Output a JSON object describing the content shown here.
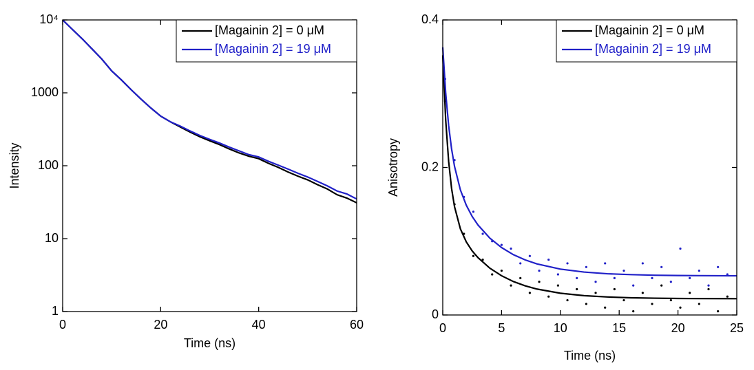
{
  "chart_data": [
    {
      "type": "line",
      "xlabel": "Time (ns)",
      "ylabel": "Intensity",
      "yscale": "log",
      "xlim": [
        0,
        60
      ],
      "ylim": [
        1,
        10000
      ],
      "xticks": [
        0,
        20,
        40,
        60
      ],
      "yticks": [
        1,
        10,
        100,
        1000,
        {
          "value": 10000,
          "label": "10⁴"
        }
      ],
      "legend": "upper right",
      "x": [
        0,
        2,
        4,
        6,
        8,
        10,
        12,
        14,
        16,
        18,
        20,
        22,
        24,
        26,
        28,
        30,
        32,
        34,
        36,
        38,
        40,
        42,
        44,
        46,
        48,
        50,
        52,
        54,
        56,
        58,
        60
      ],
      "series": [
        {
          "name": "[Magainin 2] = 0 μM",
          "color": "#000000",
          "values": [
            10000,
            7400,
            5500,
            4000,
            2900,
            2000,
            1500,
            1100,
            820,
            620,
            480,
            400,
            340,
            290,
            250,
            220,
            195,
            170,
            150,
            135,
            125,
            108,
            95,
            82,
            72,
            64,
            55,
            48,
            40,
            36,
            31
          ]
        },
        {
          "name": "[Magainin 2] = 19 μM",
          "color": "#2020c8",
          "values": [
            10000,
            7400,
            5500,
            4000,
            2900,
            2000,
            1500,
            1100,
            820,
            620,
            480,
            400,
            350,
            300,
            260,
            230,
            205,
            180,
            160,
            142,
            132,
            115,
            102,
            90,
            79,
            70,
            61,
            53,
            45,
            41,
            35
          ]
        }
      ]
    },
    {
      "type": "line",
      "xlabel": "Time (ns)",
      "ylabel": "Anisotropy",
      "xlim": [
        0,
        25
      ],
      "ylim": [
        0,
        0.4
      ],
      "xticks": [
        0,
        5,
        10,
        15,
        20,
        25
      ],
      "yticks": [
        0,
        0.2,
        0.4
      ],
      "legend": "upper right",
      "x": [
        0,
        0.25,
        0.5,
        0.75,
        1,
        1.5,
        2,
        2.5,
        3,
        4,
        5,
        6,
        7,
        8,
        10,
        12,
        14,
        16,
        18,
        20,
        22,
        25
      ],
      "series": [
        {
          "name": "[Magainin 2] = 0 μM",
          "color": "#000000",
          "values": [
            0.352,
            0.2643,
            0.2083,
            0.1715,
            0.1468,
            0.1167,
            0.0991,
            0.0869,
            0.0777,
            0.0635,
            0.0532,
            0.0454,
            0.0396,
            0.0352,
            0.0295,
            0.0262,
            0.0244,
            0.0233,
            0.0228,
            0.0224,
            0.0222,
            0.0221
          ]
        },
        {
          "name": "[Magainin 2] = 19 μM",
          "color": "#2020c8",
          "values": [
            0.363,
            0.3009,
            0.2569,
            0.2251,
            0.2015,
            0.1695,
            0.1488,
            0.1336,
            0.1219,
            0.1042,
            0.0914,
            0.0818,
            0.0747,
            0.0693,
            0.0622,
            0.0582,
            0.0559,
            0.0547,
            0.0539,
            0.0535,
            0.0533,
            0.0531
          ]
        }
      ],
      "points": [
        {
          "color": "#000000",
          "x": [
            0.2,
            1.0,
            1.8,
            2.6,
            3.4,
            4.2,
            5.0,
            5.8,
            6.6,
            7.4,
            8.2,
            9.0,
            9.8,
            10.6,
            11.4,
            12.2,
            13.0,
            13.8,
            14.6,
            15.4,
            16.2,
            17.0,
            17.8,
            18.6,
            19.4,
            20.2,
            21.0,
            21.8,
            22.6,
            23.4,
            24.2
          ],
          "values": [
            0.29,
            0.15,
            0.11,
            0.08,
            0.075,
            0.055,
            0.06,
            0.04,
            0.05,
            0.03,
            0.045,
            0.025,
            0.04,
            0.02,
            0.035,
            0.015,
            0.03,
            0.01,
            0.035,
            0.02,
            0.005,
            0.03,
            0.015,
            0.04,
            0.02,
            0.01,
            0.03,
            0.015,
            0.035,
            0.005,
            0.025
          ]
        },
        {
          "color": "#2020c8",
          "x": [
            0.2,
            1.0,
            1.8,
            2.6,
            3.4,
            4.2,
            5.0,
            5.8,
            6.6,
            7.4,
            8.2,
            9.0,
            9.8,
            10.6,
            11.4,
            12.2,
            13.0,
            13.8,
            14.6,
            15.4,
            16.2,
            17.0,
            17.8,
            18.6,
            19.4,
            20.2,
            21.0,
            21.8,
            22.6,
            23.4,
            24.2
          ],
          "values": [
            0.32,
            0.21,
            0.16,
            0.14,
            0.11,
            0.1,
            0.095,
            0.09,
            0.07,
            0.08,
            0.06,
            0.075,
            0.055,
            0.07,
            0.05,
            0.065,
            0.045,
            0.07,
            0.05,
            0.06,
            0.04,
            0.07,
            0.05,
            0.065,
            0.045,
            0.09,
            0.05,
            0.06,
            0.04,
            0.065,
            0.055
          ]
        }
      ]
    }
  ]
}
